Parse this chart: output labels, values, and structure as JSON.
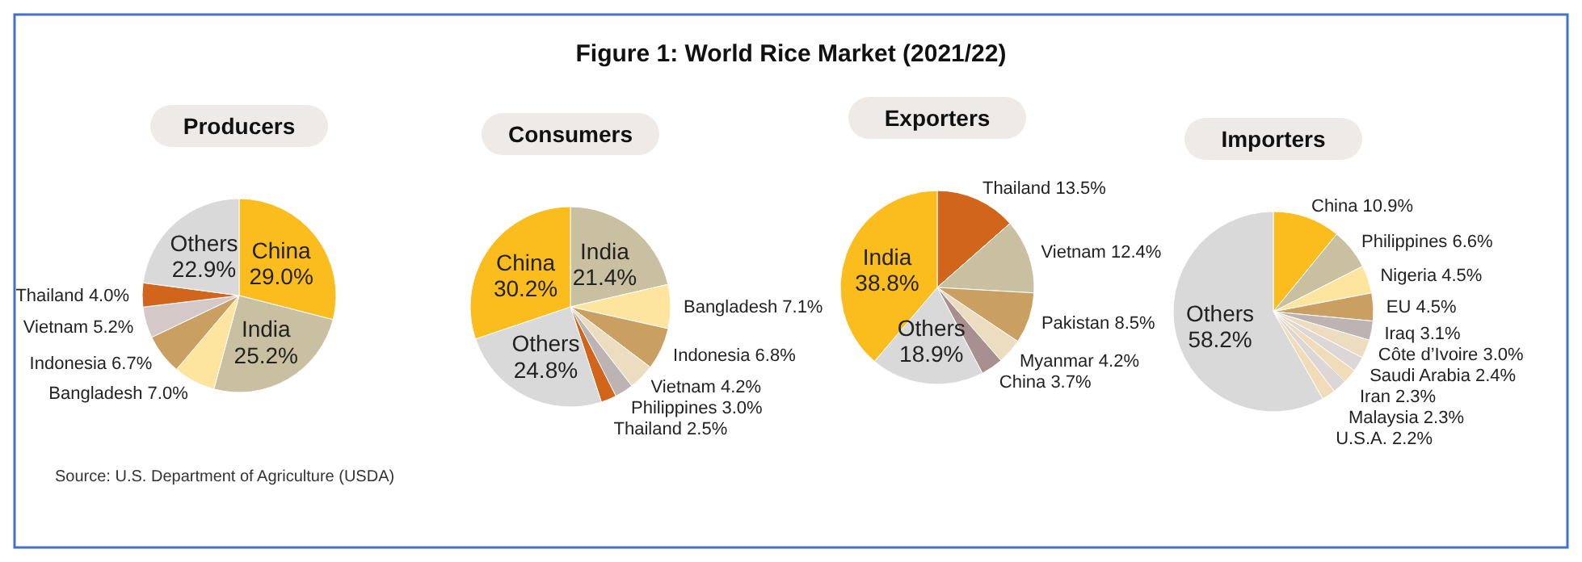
{
  "chart_data": [
    {
      "type": "pie",
      "title": "Producers",
      "annotations": [
        "Figure 1: World Rice Market (2021/22)",
        "Source: U.S. Department of Agriculture (USDA)"
      ],
      "categories": [
        "China",
        "India",
        "Bangladesh",
        "Indonesia",
        "Vietnam",
        "Thailand",
        "Others"
      ],
      "values": [
        29.0,
        25.2,
        7.0,
        6.7,
        5.2,
        4.0,
        22.9
      ],
      "value_labels": [
        "29.0%",
        "25.2%",
        "7.0%",
        "6.7%",
        "5.2%",
        "4.0%",
        "22.9%"
      ],
      "colors": [
        "#fbbc1d",
        "#c8c0a0",
        "#fde5a0",
        "#c9a062",
        "#d5c8c8",
        "#d2651c",
        "#d9d9d9"
      ]
    },
    {
      "type": "pie",
      "title": "Consumers",
      "categories": [
        "India",
        "Bangladesh",
        "Indonesia",
        "Vietnam",
        "Philippines",
        "Thailand",
        "Others",
        "China"
      ],
      "values": [
        21.4,
        7.1,
        6.8,
        4.2,
        3.0,
        2.5,
        24.8,
        30.2
      ],
      "value_labels": [
        "21.4%",
        "7.1%",
        "6.8%",
        "4.2%",
        "3.0%",
        "2.5%",
        "24.8%",
        "30.2%"
      ],
      "colors": [
        "#c8c0a0",
        "#fde5a0",
        "#c9a062",
        "#ecdcc0",
        "#bdb3b3",
        "#d2651c",
        "#d9d9d9",
        "#fbbc1d"
      ]
    },
    {
      "type": "pie",
      "title": "Exporters",
      "categories": [
        "Thailand",
        "Vietnam",
        "Pakistan",
        "Myanmar",
        "China",
        "Others",
        "India"
      ],
      "values": [
        13.5,
        12.4,
        8.5,
        4.2,
        3.7,
        18.9,
        38.8
      ],
      "value_labels": [
        "13.5%",
        "12.4%",
        "8.5%",
        "4.2%",
        "3.7%",
        "18.9%",
        "38.8%"
      ],
      "colors": [
        "#d2651c",
        "#c8c0a0",
        "#c9a062",
        "#ecdcc0",
        "#a89090",
        "#d9d9d9",
        "#fbbc1d"
      ]
    },
    {
      "type": "pie",
      "title": "Importers",
      "categories": [
        "China",
        "Philippines",
        "Nigeria",
        "EU",
        "Iraq",
        "Côte d’Ivoire",
        "Saudi Arabia",
        "Iran",
        "Malaysia",
        "U.S.A.",
        "Others"
      ],
      "values": [
        10.9,
        6.6,
        4.5,
        4.5,
        3.1,
        3.0,
        2.4,
        2.3,
        2.3,
        2.2,
        58.2
      ],
      "value_labels": [
        "10.9%",
        "6.6%",
        "4.5%",
        "4.5%",
        "3.1%",
        "3.0%",
        "2.4%",
        "2.3%",
        "2.3%",
        "2.2%",
        "58.2%"
      ],
      "colors": [
        "#fbbc1d",
        "#c8c0a0",
        "#fde5a0",
        "#c9a062",
        "#bdb3b3",
        "#ecdcc0",
        "#ddd6d6",
        "#f0dcb8",
        "#ddd6d6",
        "#f0dcb8",
        "#d9d9d9"
      ]
    }
  ]
}
